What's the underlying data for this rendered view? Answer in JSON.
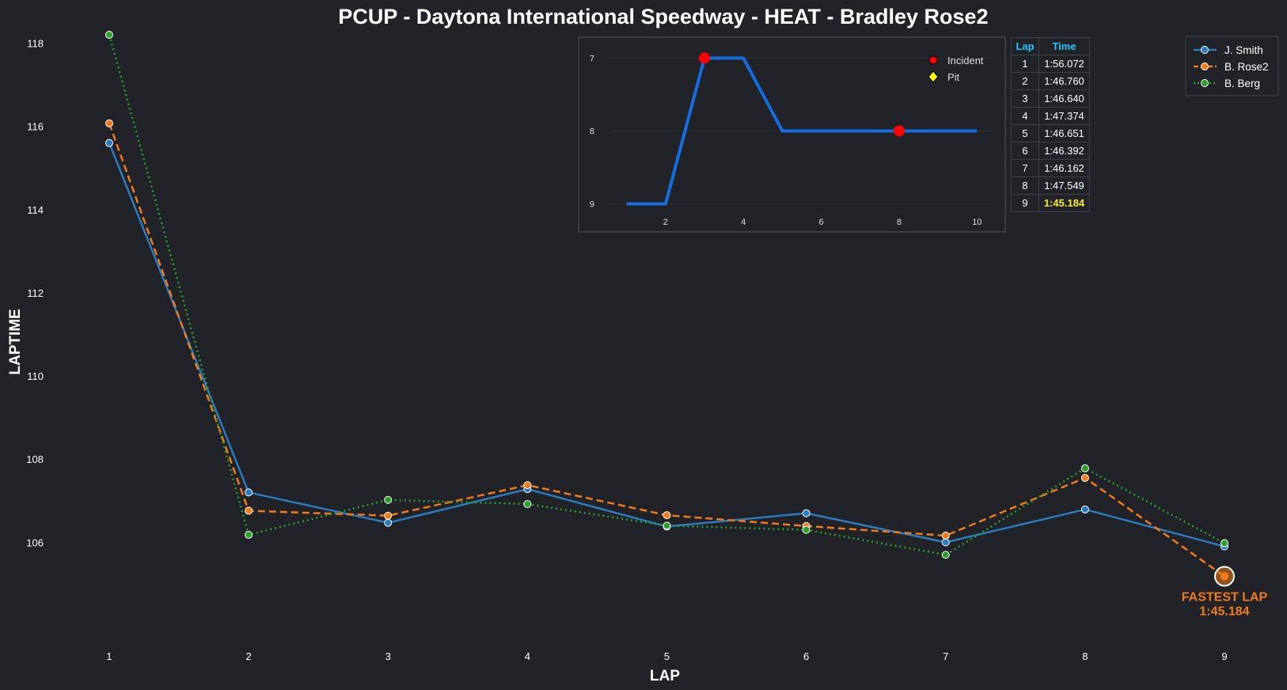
{
  "colors": {
    "background": "#212328",
    "j_smith": "#2a7bc0",
    "b_rose2": "#f07b18",
    "b_berg": "#2ca02c",
    "inset_line": "#136fe0",
    "incident": "#ff0000",
    "pit": "#ffff00",
    "table_header": "#1ec8ff",
    "fastest_lap": "#f07b18",
    "best_time": "#f2ee2a"
  },
  "chart_data": [
    {
      "type": "line",
      "title": "PCUP - Daytona International Speedway - HEAT - Bradley Rose2",
      "xlabel": "LAP",
      "ylabel": "LAPTIME",
      "x": [
        1,
        2,
        3,
        4,
        5,
        6,
        7,
        8,
        9
      ],
      "xticks": [
        "1",
        "2",
        "3",
        "4",
        "5",
        "6",
        "7",
        "8",
        "9"
      ],
      "yticks": [
        "106",
        "108",
        "110",
        "112",
        "114",
        "116",
        "118"
      ],
      "ylim": [
        104.2,
        118.2
      ],
      "grid": false,
      "legend_position": "top-right",
      "series": [
        {
          "name": "J. Smith",
          "style": "solid",
          "values": [
            115.6,
            107.2,
            106.47,
            107.28,
            106.38,
            106.7,
            106.0,
            106.79,
            105.9
          ]
        },
        {
          "name": "B. Rose2",
          "style": "dashed",
          "values": [
            116.072,
            106.76,
            106.64,
            107.374,
            106.651,
            106.392,
            106.162,
            107.549,
            105.184
          ]
        },
        {
          "name": "B. Berg",
          "style": "dotted",
          "values": [
            118.2,
            106.18,
            107.02,
            106.92,
            106.4,
            106.3,
            105.7,
            107.78,
            105.98
          ]
        }
      ],
      "annotation": {
        "label": "FASTEST LAP",
        "value": "1:45.184",
        "x": 9,
        "y": 105.184
      }
    },
    {
      "type": "line",
      "x": [
        1,
        2,
        3,
        4,
        5,
        6,
        7,
        8,
        9,
        10
      ],
      "values": [
        9,
        9,
        7,
        7,
        8,
        8,
        8,
        8,
        8,
        8
      ],
      "xticks": [
        "2",
        "4",
        "6",
        "8",
        "10"
      ],
      "yticks": [
        "7",
        "8",
        "9"
      ],
      "ylim": [
        9.2,
        6.8
      ],
      "xlim": [
        0.6,
        10.4
      ],
      "y_inverted": true,
      "incidents": [
        {
          "x": 3,
          "y": 7
        },
        {
          "x": 8,
          "y": 8
        }
      ],
      "legend": [
        {
          "label": "Incident",
          "marker": "circle"
        },
        {
          "label": "Pit",
          "marker": "diamond"
        }
      ]
    },
    {
      "type": "table",
      "columns": [
        "Lap",
        "Time"
      ],
      "rows": [
        [
          "1",
          "1:56.072"
        ],
        [
          "2",
          "1:46.760"
        ],
        [
          "3",
          "1:46.640"
        ],
        [
          "4",
          "1:47.374"
        ],
        [
          "5",
          "1:46.651"
        ],
        [
          "6",
          "1:46.392"
        ],
        [
          "7",
          "1:46.162"
        ],
        [
          "8",
          "1:47.549"
        ],
        [
          "9",
          "1:45.184"
        ]
      ],
      "best_row": 8
    }
  ]
}
